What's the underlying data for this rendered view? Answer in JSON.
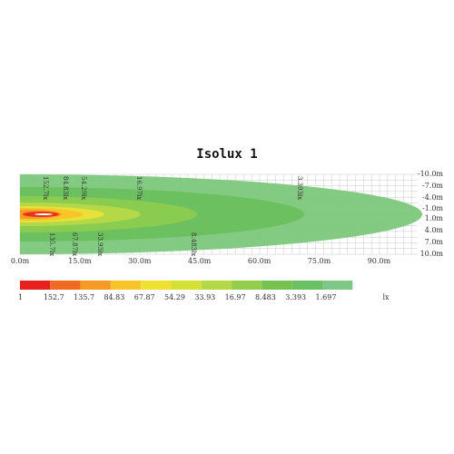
{
  "title": "Isolux 1",
  "x_labels": [
    "0.0m",
    "15.0m",
    "30.0m",
    "45.0m",
    "60.0m",
    "75.0m",
    "90.0m"
  ],
  "y_labels": [
    "-10.0m",
    "-7.0m",
    "-4.0m",
    "-1.0m",
    "1.0m",
    "4.0m",
    "7.0m",
    "10.0m"
  ],
  "contour_labels_top": [
    "152.7lx",
    "84.83lx",
    "54.29lx",
    "16.97lx",
    "3.393lx"
  ],
  "contour_labels_bottom": [
    "135.7lx",
    "67.87lx",
    "33.93lx",
    "8.483lx"
  ],
  "legend": {
    "values": [
      "1",
      "152.7",
      "135.7",
      "84.83",
      "67.87",
      "54.29",
      "33.93",
      "16.97",
      "8.483",
      "3.393",
      "1.697"
    ],
    "unit": "lx"
  }
}
